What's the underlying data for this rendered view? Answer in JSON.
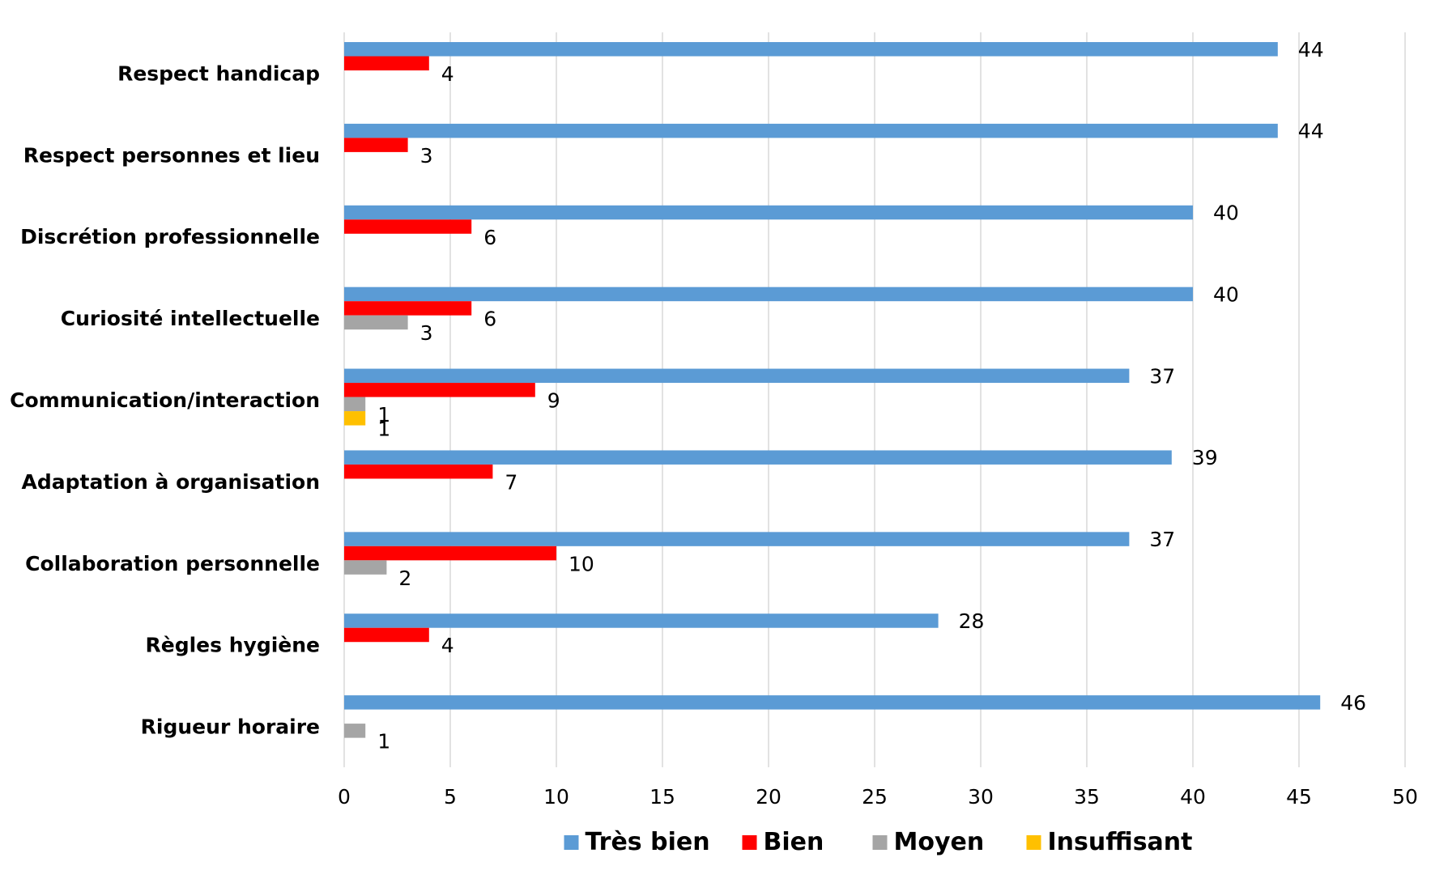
{
  "chart_data": {
    "type": "bar",
    "orientation": "horizontal",
    "categories": [
      "Respect handicap",
      "Respect personnes et lieu",
      "Discrétion professionnelle",
      "Curiosité intellectuelle",
      "Communication/interaction",
      "Adaptation à organisation",
      "Collaboration personnelle",
      "Règles hygiène",
      "Rigueur horaire"
    ],
    "series": [
      {
        "name": "Très bien",
        "color": "#5b9bd5",
        "values": [
          44,
          44,
          40,
          40,
          37,
          39,
          37,
          28,
          46
        ]
      },
      {
        "name": "Bien",
        "color": "#ff0000",
        "values": [
          4,
          3,
          6,
          6,
          9,
          7,
          10,
          4,
          null
        ]
      },
      {
        "name": "Moyen",
        "color": "#a5a5a5",
        "values": [
          null,
          null,
          null,
          3,
          1,
          null,
          2,
          null,
          1
        ]
      },
      {
        "name": "Insuffisant",
        "color": "#ffc000",
        "values": [
          null,
          null,
          null,
          null,
          1,
          null,
          null,
          null,
          null
        ]
      }
    ],
    "xlim": [
      0,
      50
    ],
    "xticks": [
      "0",
      "5",
      "10",
      "15",
      "20",
      "25",
      "30",
      "35",
      "40",
      "45",
      "50"
    ],
    "title": "",
    "xlabel": "",
    "ylabel": "",
    "grid": "vertical",
    "legend_position": "bottom",
    "data_labels": true
  }
}
